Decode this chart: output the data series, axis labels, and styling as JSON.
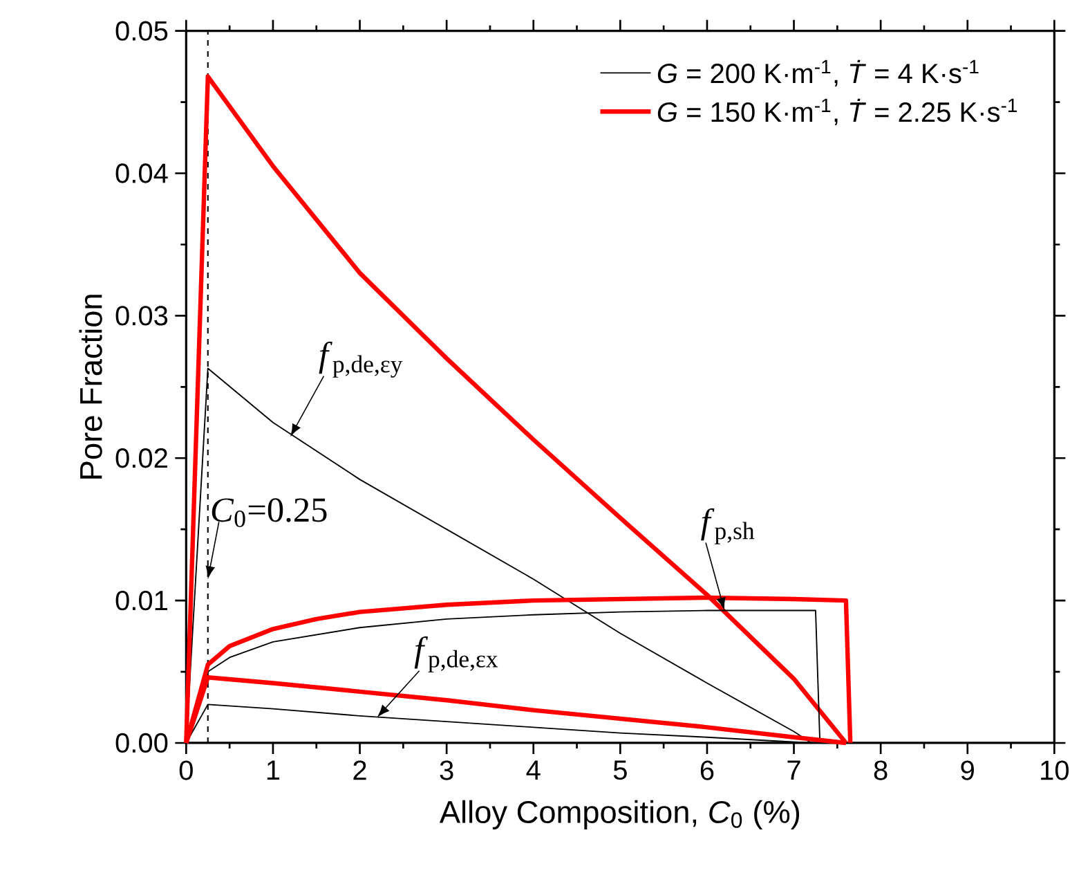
{
  "chart_data": {
    "type": "line",
    "xlabel": "Alloy Composition, *C*$_{0}$ (%)",
    "ylabel": "Pore Fraction",
    "xlim": [
      0,
      10
    ],
    "ylim": [
      0,
      0.05
    ],
    "xticks": [
      0,
      1,
      2,
      3,
      4,
      5,
      6,
      7,
      8,
      9,
      10
    ],
    "yticks": [
      {
        "value": 0,
        "label": "0.00"
      },
      {
        "value": 0.01,
        "label": "0.01"
      },
      {
        "value": 0.02,
        "label": "0.02"
      },
      {
        "value": 0.03,
        "label": "0.03"
      },
      {
        "value": 0.04,
        "label": "0.04"
      },
      {
        "value": 0.05,
        "label": "0.05"
      }
    ],
    "legend": "top right",
    "grid": false,
    "marker": "none",
    "series": [
      {
        "name": "*G* = 200 K·m$^{-1}$, *Ṫ* = 4 K·s$^{-1}$",
        "color": "#000000",
        "x": [
          0,
          0.25,
          1,
          2,
          3,
          4,
          5,
          6,
          7,
          7.2
        ],
        "values": [
          0,
          0.0263,
          0.0225,
          0.0185,
          0.015,
          0.0115,
          0.0077,
          0.0042,
          0.0008,
          0
        ]
      },
      {
        "name": "*G* = 150 K·m$^{-1}$, *Ṫ* = 2.25 K·s$^{-1}$",
        "color": "#ff0000",
        "x": [
          0,
          0.25,
          1,
          2,
          3,
          4,
          5,
          6,
          7,
          7.6
        ],
        "values": [
          0,
          0.0468,
          0.0405,
          0.033,
          0.027,
          0.0213,
          0.0158,
          0.0104,
          0.0045,
          0
        ]
      },
      {
        "color": "#000000",
        "x": [
          0,
          0.25,
          0.5,
          1,
          2,
          3,
          4,
          5,
          6,
          7.25,
          7.3
        ],
        "values": [
          0,
          0.005,
          0.006,
          0.0071,
          0.0081,
          0.0087,
          0.009,
          0.0092,
          0.0093,
          0.0093,
          0
        ]
      },
      {
        "color": "#ff0000",
        "x": [
          0,
          0.25,
          0.5,
          1,
          1.5,
          2,
          3,
          4,
          5,
          6,
          7,
          7.6,
          7.65
        ],
        "values": [
          0,
          0.0055,
          0.0068,
          0.008,
          0.0087,
          0.0092,
          0.0097,
          0.01,
          0.0101,
          0.0102,
          0.0101,
          0.01,
          0
        ]
      },
      {
        "color": "#000000",
        "x": [
          0,
          0.25,
          1,
          2,
          3,
          4,
          5,
          6,
          7.2
        ],
        "values": [
          0,
          0.0027,
          0.0024,
          0.0019,
          0.0015,
          0.0011,
          0.0007,
          0.0004,
          0
        ]
      },
      {
        "color": "#ff0000",
        "x": [
          0,
          0.25,
          1,
          2,
          3,
          4,
          5,
          6,
          7,
          7.6
        ],
        "values": [
          0,
          0.0046,
          0.0042,
          0.0036,
          0.003,
          0.0023,
          0.0017,
          0.0011,
          0.0004,
          0
        ]
      }
    ],
    "ref_lines": [
      {
        "axis": "x",
        "value": 0.25,
        "label": "*C*$_{0}$=0.25",
        "color": "#000000",
        "line_style": "dashed"
      }
    ],
    "annotations": [
      {
        "text": "*f*$_{p,de,εy}$",
        "x": 1.2,
        "y": 0.0215
      },
      {
        "text": "*f*$_{p,sh}$",
        "x": 6.2,
        "y": 0.0093
      },
      {
        "text": "*f*$_{p,de,εx}$",
        "x": 2.2,
        "y": 0.0018
      }
    ]
  }
}
